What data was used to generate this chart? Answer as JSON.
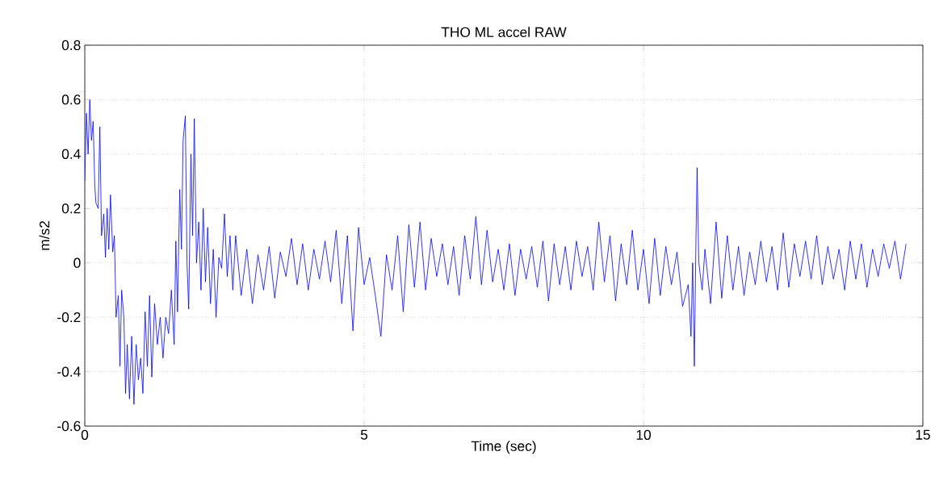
{
  "chart_data": {
    "type": "line",
    "title": "THO ML accel RAW",
    "xlabel": "Time (sec)",
    "ylabel": "m/s2",
    "xlim": [
      0,
      15
    ],
    "ylim": [
      -0.6,
      0.8
    ],
    "xticks": [
      0,
      5,
      10,
      15
    ],
    "yticks": [
      -0.6,
      -0.4,
      -0.2,
      0,
      0.2,
      0.4,
      0.6,
      0.8
    ],
    "grid": true,
    "marker": "none",
    "line_style": "solid",
    "series": [
      {
        "color": "#0000ff",
        "x": [
          0,
          0.03,
          0.06,
          0.09,
          0.12,
          0.15,
          0.18,
          0.2,
          0.24,
          0.27,
          0.3,
          0.34,
          0.37,
          0.4,
          0.43,
          0.46,
          0.5,
          0.53,
          0.56,
          0.6,
          0.63,
          0.66,
          0.7,
          0.73,
          0.76,
          0.8,
          0.84,
          0.88,
          0.92,
          0.96,
          1.0,
          1.04,
          1.08,
          1.12,
          1.16,
          1.2,
          1.25,
          1.3,
          1.35,
          1.4,
          1.45,
          1.5,
          1.55,
          1.6,
          1.63,
          1.66,
          1.7,
          1.73,
          1.76,
          1.8,
          1.83,
          1.86,
          1.9,
          1.93,
          1.96,
          2.0,
          2.04,
          2.08,
          2.12,
          2.16,
          2.2,
          2.25,
          2.3,
          2.35,
          2.4,
          2.45,
          2.5,
          2.55,
          2.6,
          2.65,
          2.7,
          2.8,
          2.9,
          3.0,
          3.1,
          3.2,
          3.3,
          3.4,
          3.5,
          3.6,
          3.7,
          3.8,
          3.9,
          4.0,
          4.1,
          4.2,
          4.3,
          4.4,
          4.5,
          4.6,
          4.7,
          4.8,
          4.9,
          5.0,
          5.1,
          5.2,
          5.3,
          5.4,
          5.5,
          5.6,
          5.7,
          5.8,
          5.9,
          6.0,
          6.1,
          6.2,
          6.3,
          6.4,
          6.5,
          6.6,
          6.7,
          6.8,
          6.9,
          7.0,
          7.1,
          7.2,
          7.3,
          7.4,
          7.5,
          7.6,
          7.7,
          7.8,
          7.9,
          8.0,
          8.1,
          8.2,
          8.3,
          8.4,
          8.5,
          8.6,
          8.7,
          8.8,
          8.9,
          9.0,
          9.1,
          9.2,
          9.3,
          9.4,
          9.5,
          9.6,
          9.7,
          9.8,
          9.9,
          10.0,
          10.1,
          10.2,
          10.3,
          10.4,
          10.5,
          10.6,
          10.7,
          10.8,
          10.85,
          10.88,
          10.91,
          10.94,
          10.96,
          10.99,
          11.05,
          11.1,
          11.2,
          11.3,
          11.4,
          11.5,
          11.6,
          11.7,
          11.8,
          11.9,
          12.0,
          12.1,
          12.2,
          12.3,
          12.4,
          12.5,
          12.6,
          12.7,
          12.8,
          12.9,
          13.0,
          13.1,
          13.2,
          13.3,
          13.4,
          13.5,
          13.6,
          13.7,
          13.8,
          13.9,
          14.0,
          14.1,
          14.2,
          14.3,
          14.4,
          14.5,
          14.6,
          14.7
        ],
        "values": [
          0.3,
          0.55,
          0.4,
          0.6,
          0.45,
          0.52,
          0.28,
          0.22,
          0.2,
          0.5,
          0.1,
          0.18,
          0.02,
          0.2,
          0.05,
          0.25,
          0.04,
          0.1,
          -0.2,
          -0.12,
          -0.38,
          -0.1,
          -0.2,
          -0.48,
          -0.3,
          -0.5,
          -0.27,
          -0.52,
          -0.3,
          -0.43,
          -0.35,
          -0.48,
          -0.18,
          -0.38,
          -0.12,
          -0.42,
          -0.15,
          -0.3,
          -0.2,
          -0.35,
          -0.2,
          -0.26,
          -0.1,
          -0.3,
          0.08,
          -0.18,
          0.27,
          0.05,
          0.45,
          0.54,
          0.0,
          -0.17,
          0.4,
          0.1,
          0.53,
          0.0,
          0.15,
          -0.1,
          0.2,
          -0.07,
          0.13,
          -0.15,
          0.05,
          -0.2,
          0.02,
          -0.02,
          0.18,
          -0.05,
          0.1,
          -0.1,
          0.1,
          -0.12,
          0.05,
          -0.15,
          0.03,
          -0.1,
          0.06,
          -0.13,
          0.04,
          -0.05,
          0.09,
          -0.08,
          0.07,
          -0.1,
          0.05,
          -0.06,
          0.08,
          -0.07,
          0.12,
          -0.15,
          0.1,
          -0.25,
          0.13,
          -0.08,
          0.02,
          -0.12,
          -0.27,
          0.03,
          -0.1,
          0.1,
          -0.18,
          0.14,
          -0.09,
          0.15,
          -0.1,
          0.09,
          -0.05,
          0.07,
          -0.08,
          0.06,
          -0.12,
          0.1,
          -0.06,
          0.17,
          -0.08,
          0.12,
          -0.07,
          0.05,
          -0.1,
          0.07,
          -0.12,
          0.05,
          -0.06,
          0.06,
          -0.09,
          0.08,
          -0.14,
          0.07,
          -0.08,
          0.06,
          -0.1,
          0.08,
          -0.05,
          0.06,
          -0.1,
          0.15,
          -0.07,
          0.1,
          -0.14,
          0.07,
          -0.08,
          0.12,
          -0.1,
          0.05,
          -0.15,
          0.09,
          -0.12,
          0.06,
          -0.08,
          0.04,
          -0.16,
          -0.08,
          -0.27,
          0.0,
          -0.38,
          0.1,
          0.35,
          0.0,
          -0.1,
          0.05,
          -0.15,
          0.15,
          -0.13,
          0.1,
          -0.1,
          0.06,
          -0.12,
          0.04,
          -0.08,
          0.08,
          -0.07,
          0.06,
          -0.1,
          0.11,
          -0.09,
          0.07,
          -0.05,
          0.08,
          -0.06,
          0.1,
          -0.08,
          0.06,
          -0.06,
          0.05,
          -0.1,
          0.08,
          -0.06,
          0.07,
          -0.09,
          0.05,
          -0.05,
          0.07,
          -0.02,
          0.08,
          -0.06,
          0.07
        ]
      }
    ]
  }
}
